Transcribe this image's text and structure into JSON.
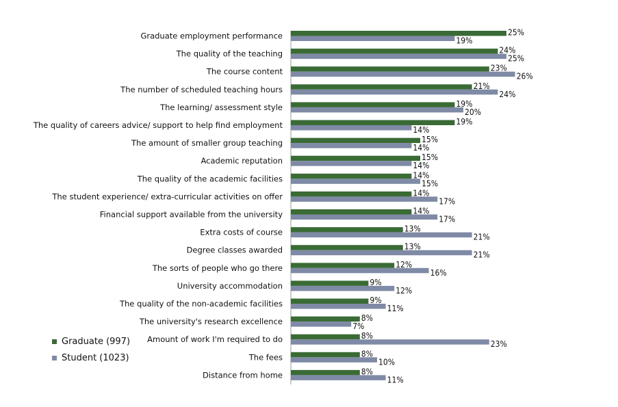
{
  "chart_data": {
    "type": "bar",
    "orientation": "horizontal",
    "categories": [
      "Graduate employment performance",
      "The quality of the teaching",
      "The course content",
      "The number of scheduled teaching hours",
      "The learning/ assessment style",
      "The quality of careers advice/ support to help find employment",
      "The amount of smaller group teaching",
      "Academic reputation",
      "The quality of the academic facilities",
      "The student experience/ extra-curricular activities on offer",
      "Financial support available from the university",
      "Extra costs of course",
      "Degree classes awarded",
      "The sorts of people who go there",
      "University accommodation",
      "The quality of the non-academic facilities",
      "The university's research excellence",
      "Amount of work I'm required to do",
      "The fees",
      "Distance from home"
    ],
    "series": [
      {
        "name": "Graduate (997)",
        "color": "#3a6b35",
        "values": [
          25,
          24,
          23,
          21,
          19,
          19,
          15,
          15,
          14,
          14,
          14,
          13,
          13,
          12,
          9,
          9,
          8,
          8,
          8,
          8
        ]
      },
      {
        "name": "Student (1023)",
        "color": "#7f8aa6",
        "values": [
          19,
          25,
          26,
          24,
          20,
          14,
          14,
          14,
          15,
          17,
          17,
          21,
          21,
          16,
          12,
          11,
          7,
          23,
          10,
          11
        ]
      }
    ],
    "value_suffix": "%",
    "xlim": [
      0,
      30
    ],
    "grid": false,
    "legend_position": "bottom-left"
  }
}
